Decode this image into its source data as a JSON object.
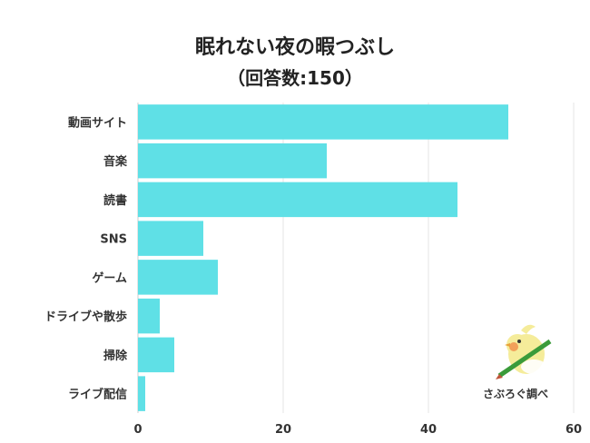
{
  "chart_data": {
    "type": "bar",
    "orientation": "horizontal",
    "title": "眠れない夜の暇つぶし",
    "subtitle": "（回答数:150）",
    "categories": [
      "動画サイト",
      "音楽",
      "読書",
      "SNS",
      "ゲーム",
      "ドライブや散歩",
      "掃除",
      "ライブ配信"
    ],
    "values": [
      51,
      26,
      44,
      9,
      11,
      3,
      5,
      1
    ],
    "xlim": [
      0,
      60
    ],
    "xticks": [
      0,
      20,
      40,
      60
    ],
    "grid": true,
    "bar_color": "#5fe0e6"
  },
  "watermark": {
    "text": "さぶろぐ調べ",
    "icon": "cockatiel-mascot-with-pencil-icon"
  }
}
